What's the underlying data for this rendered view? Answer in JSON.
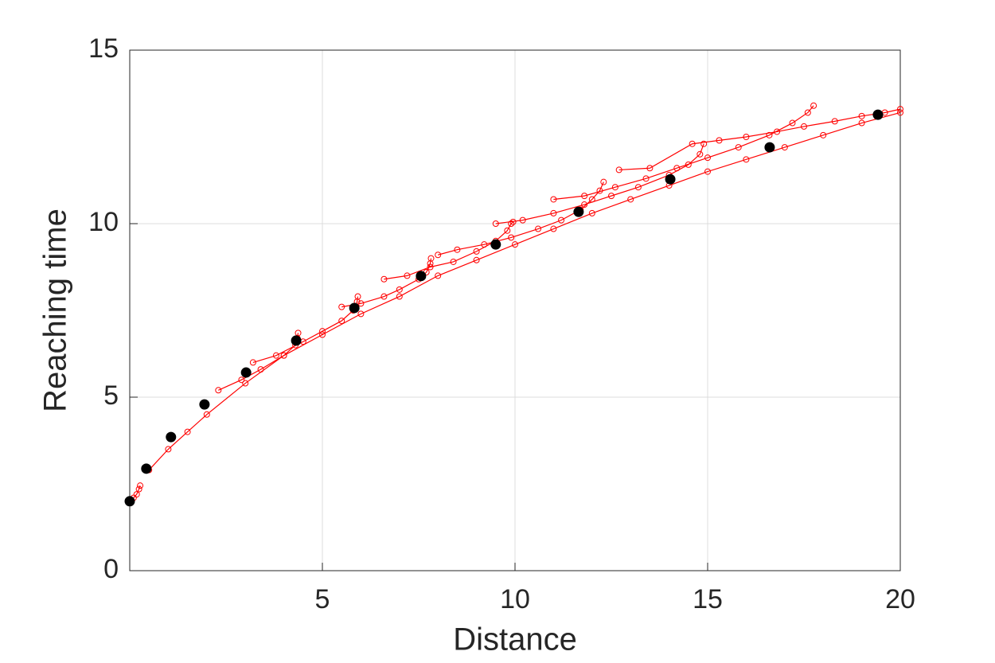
{
  "chart_data": {
    "type": "line",
    "x_label": "Distance",
    "y_label": "Reaching time",
    "xlim": [
      0,
      20
    ],
    "ylim": [
      0,
      15
    ],
    "xticks": [
      5,
      10,
      15,
      20
    ],
    "yticks": [
      0,
      5,
      10,
      15
    ],
    "grid": true,
    "series": [
      {
        "color": "#ff0000",
        "marker": "open-circle",
        "line": true,
        "x": [
          0,
          0.1,
          0.18,
          0.24,
          0.27
        ],
        "values": [
          2.0,
          2.1,
          2.2,
          2.35,
          2.45
        ]
      },
      {
        "color": "#ff0000",
        "marker": "open-circle",
        "line": true,
        "x": [
          0.5,
          1,
          1.5,
          2,
          3,
          4,
          5,
          6,
          7,
          8,
          9,
          10,
          11,
          12,
          13,
          14,
          15,
          16,
          17,
          18,
          19,
          20
        ],
        "values": [
          2.9,
          3.5,
          4.0,
          4.5,
          5.4,
          6.2,
          6.8,
          7.4,
          7.9,
          8.5,
          8.95,
          9.4,
          9.85,
          10.3,
          10.7,
          11.1,
          11.5,
          11.85,
          12.2,
          12.55,
          12.9,
          13.2
        ]
      },
      {
        "color": "#ff0000",
        "marker": "open-circle",
        "line": true,
        "x": [
          2.3,
          2.9,
          3.4,
          4.0,
          4.3,
          4.35,
          4.37
        ],
        "values": [
          5.2,
          5.5,
          5.8,
          6.2,
          6.5,
          6.7,
          6.85
        ]
      },
      {
        "color": "#ff0000",
        "marker": "open-circle",
        "line": true,
        "x": [
          3.2,
          3.8,
          4.5,
          5.0,
          5.5,
          5.8,
          5.9,
          5.92
        ],
        "values": [
          6.0,
          6.2,
          6.6,
          6.9,
          7.2,
          7.5,
          7.75,
          7.9
        ]
      },
      {
        "color": "#ff0000",
        "marker": "open-circle",
        "line": true,
        "x": [
          5.5,
          6.0,
          6.6,
          7.0,
          7.5,
          7.7,
          7.8,
          7.82
        ],
        "values": [
          7.6,
          7.7,
          7.9,
          8.1,
          8.4,
          8.6,
          8.85,
          9.0
        ]
      },
      {
        "color": "#ff0000",
        "marker": "open-circle",
        "line": true,
        "x": [
          6.6,
          7.2,
          7.8,
          8.4,
          9.0,
          9.5,
          9.8,
          9.9,
          9.95
        ],
        "values": [
          8.4,
          8.5,
          8.75,
          8.9,
          9.2,
          9.5,
          9.8,
          10.0,
          10.05
        ]
      },
      {
        "color": "#ff0000",
        "marker": "open-circle",
        "line": true,
        "x": [
          8.0,
          8.5,
          9.2,
          9.9,
          10.6,
          11.2,
          11.7,
          12.0,
          12.2,
          12.3
        ],
        "values": [
          9.1,
          9.25,
          9.4,
          9.6,
          9.85,
          10.1,
          10.4,
          10.7,
          10.95,
          11.2
        ]
      },
      {
        "color": "#ff0000",
        "marker": "open-circle",
        "line": true,
        "x": [
          9.5,
          10.2,
          11.0,
          11.8,
          12.5,
          13.2,
          14.0,
          14.5,
          14.8,
          14.9
        ],
        "values": [
          10.0,
          10.1,
          10.3,
          10.55,
          10.8,
          11.05,
          11.4,
          11.7,
          12.0,
          12.3
        ]
      },
      {
        "color": "#ff0000",
        "marker": "open-circle",
        "line": true,
        "x": [
          11.0,
          11.8,
          12.6,
          13.4,
          14.2,
          15.0,
          15.8,
          16.6,
          17.2,
          17.6,
          17.75
        ],
        "values": [
          10.7,
          10.8,
          11.05,
          11.3,
          11.6,
          11.9,
          12.2,
          12.55,
          12.9,
          13.2,
          13.4
        ]
      },
      {
        "color": "#ff0000",
        "marker": "open-circle",
        "line": true,
        "x": [
          12.7,
          13.5,
          14.6,
          15.3,
          16.0,
          16.8,
          17.5,
          18.3,
          19.0,
          19.6,
          20.0
        ],
        "values": [
          11.55,
          11.6,
          12.3,
          12.4,
          12.5,
          12.65,
          12.8,
          12.95,
          13.1,
          13.2,
          13.3
        ]
      },
      {
        "color": "#000000",
        "marker": "filled-circle",
        "line": false,
        "x": [
          0,
          0.43,
          1.07,
          1.94,
          3.02,
          4.32,
          5.83,
          7.56,
          9.5,
          11.65,
          14.03,
          16.61,
          19.42
        ],
        "values": [
          2.0,
          2.94,
          3.85,
          4.79,
          5.71,
          6.63,
          7.57,
          8.49,
          9.4,
          10.34,
          11.28,
          12.2,
          13.14
        ]
      }
    ]
  }
}
